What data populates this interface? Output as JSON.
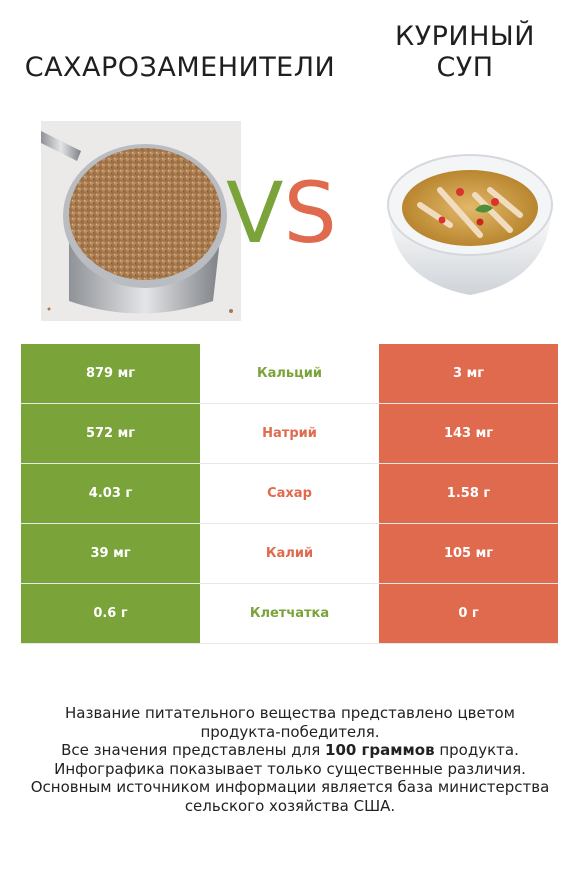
{
  "left_product": {
    "name": "САХАРОЗАМЕНИТЕЛИ",
    "color": "#7aa33a"
  },
  "right_product": {
    "name_line1": "КУРИНЫЙ",
    "name_line2": "СУП",
    "color": "#e06a4e"
  },
  "vs": {
    "v": "V",
    "s": "S"
  },
  "rows": [
    {
      "nutrient": "Кальций",
      "left": "879 мг",
      "right": "3 мг",
      "winner": "left"
    },
    {
      "nutrient": "Натрий",
      "left": "572 мг",
      "right": "143 мг",
      "winner": "right"
    },
    {
      "nutrient": "Сахар",
      "left": "4.03 г",
      "right": "1.58 г",
      "winner": "right"
    },
    {
      "nutrient": "Калий",
      "left": "39 мг",
      "right": "105 мг",
      "winner": "right"
    },
    {
      "nutrient": "Клетчатка",
      "left": "0.6 г",
      "right": "0 г",
      "winner": "left"
    }
  ],
  "footnote": {
    "line1": "Название питательного вещества представлено цветом",
    "line2": "продукта-победителя.",
    "line3_pre": "Все значения представлены для ",
    "line3_bold": "100 граммов",
    "line3_post": " продукта.",
    "line4": "Инфографика показывает только существенные различия.",
    "line5": "Основным источником информации является база министерства",
    "line6": "сельского хозяйства США."
  }
}
